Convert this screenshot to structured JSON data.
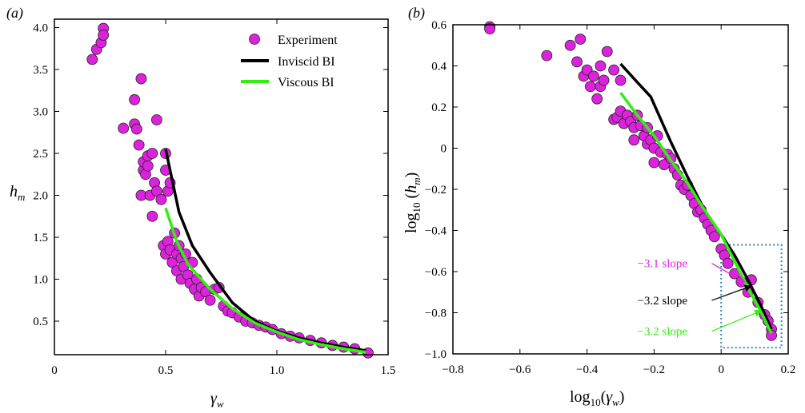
{
  "colors": {
    "experiment_fill": "#dd22dd",
    "experiment_edge": "#222222",
    "inviscid": "#000000",
    "viscous": "#33ee11",
    "box": "#2a8ab8",
    "annot_magenta": "#dd22dd",
    "annot_black": "#000000",
    "annot_green": "#33ee11"
  },
  "chart_data": [
    {
      "type": "scatter",
      "panel_label": "(a)",
      "xlabel": "γ_w",
      "ylabel": "h_m",
      "xlim": [
        0,
        1.5
      ],
      "ylim": [
        0.1,
        4.1
      ],
      "x_ticks": [
        0,
        0.5,
        1.0,
        1.5
      ],
      "x_tick_labels": [
        "0",
        "0.5",
        "1.0",
        "1.5"
      ],
      "y_ticks": [
        0.5,
        1.0,
        1.5,
        2.0,
        2.5,
        3.0,
        3.5,
        4.0
      ],
      "y_tick_labels": [
        "0.5",
        "1.0",
        "1.5",
        "2.0",
        "2.5",
        "3.0",
        "3.5",
        "4.0"
      ],
      "legend": {
        "position": "top-right",
        "entries": [
          "Experiment",
          "Inviscid BI",
          "Viscous BI"
        ]
      },
      "series": [
        {
          "name": "Experiment",
          "kind": "scatter",
          "points": [
            [
              0.17,
              3.62
            ],
            [
              0.19,
              3.74
            ],
            [
              0.21,
              3.82
            ],
            [
              0.22,
              3.99
            ],
            [
              0.22,
              3.91
            ],
            [
              0.31,
              2.8
            ],
            [
              0.36,
              2.85
            ],
            [
              0.36,
              3.14
            ],
            [
              0.37,
              2.79
            ],
            [
              0.38,
              2.6
            ],
            [
              0.39,
              3.39
            ],
            [
              0.39,
              2.0
            ],
            [
              0.4,
              2.3
            ],
            [
              0.4,
              2.4
            ],
            [
              0.41,
              2.25
            ],
            [
              0.42,
              2.35
            ],
            [
              0.42,
              2.47
            ],
            [
              0.43,
              2.0
            ],
            [
              0.44,
              1.75
            ],
            [
              0.44,
              2.5
            ],
            [
              0.45,
              2.15
            ],
            [
              0.46,
              2.9
            ],
            [
              0.46,
              2.05
            ],
            [
              0.48,
              1.95
            ],
            [
              0.5,
              2.5
            ],
            [
              0.5,
              2.3
            ],
            [
              0.51,
              2.05
            ],
            [
              0.52,
              2.15
            ],
            [
              0.49,
              1.4
            ],
            [
              0.5,
              1.3
            ],
            [
              0.51,
              1.45
            ],
            [
              0.52,
              1.35
            ],
            [
              0.53,
              1.2
            ],
            [
              0.54,
              1.55
            ],
            [
              0.55,
              1.3
            ],
            [
              0.55,
              1.1
            ],
            [
              0.56,
              1.4
            ],
            [
              0.57,
              1.25
            ],
            [
              0.57,
              1.0
            ],
            [
              0.58,
              1.15
            ],
            [
              0.59,
              1.3
            ],
            [
              0.6,
              1.05
            ],
            [
              0.61,
              0.95
            ],
            [
              0.62,
              1.2
            ],
            [
              0.63,
              0.88
            ],
            [
              0.64,
              1.0
            ],
            [
              0.65,
              0.8
            ],
            [
              0.66,
              0.9
            ],
            [
              0.68,
              0.85
            ],
            [
              0.7,
              0.75
            ],
            [
              0.72,
              0.88
            ],
            [
              0.74,
              0.9
            ],
            [
              0.76,
              0.68
            ],
            [
              0.78,
              0.62
            ],
            [
              0.8,
              0.6
            ],
            [
              0.83,
              0.55
            ],
            [
              0.86,
              0.5
            ],
            [
              0.89,
              0.48
            ],
            [
              0.92,
              0.45
            ],
            [
              0.95,
              0.43
            ],
            [
              0.98,
              0.4
            ],
            [
              1.02,
              0.35
            ],
            [
              1.06,
              0.32
            ],
            [
              1.1,
              0.3
            ],
            [
              1.15,
              0.27
            ],
            [
              1.2,
              0.24
            ],
            [
              1.25,
              0.21
            ],
            [
              1.3,
              0.19
            ],
            [
              1.35,
              0.17
            ],
            [
              1.41,
              0.12
            ]
          ]
        },
        {
          "name": "Inviscid BI",
          "kind": "line",
          "points": [
            [
              0.5,
              2.55
            ],
            [
              0.56,
              1.8
            ],
            [
              0.62,
              1.4
            ],
            [
              0.7,
              1.08
            ],
            [
              0.8,
              0.72
            ],
            [
              0.9,
              0.5
            ],
            [
              1.0,
              0.38
            ],
            [
              1.1,
              0.3
            ],
            [
              1.2,
              0.24
            ],
            [
              1.3,
              0.19
            ],
            [
              1.4,
              0.15
            ]
          ]
        },
        {
          "name": "Viscous BI",
          "kind": "line",
          "points": [
            [
              0.5,
              1.85
            ],
            [
              0.55,
              1.45
            ],
            [
              0.6,
              1.18
            ],
            [
              0.7,
              0.88
            ],
            [
              0.8,
              0.65
            ],
            [
              0.9,
              0.48
            ],
            [
              1.0,
              0.37
            ],
            [
              1.1,
              0.28
            ],
            [
              1.2,
              0.22
            ],
            [
              1.3,
              0.17
            ],
            [
              1.4,
              0.13
            ]
          ]
        }
      ]
    },
    {
      "type": "scatter",
      "panel_label": "(b)",
      "xlabel": "log10(γ_w)",
      "ylabel": "log10(h_m)",
      "xlim": [
        -0.8,
        0.2
      ],
      "ylim": [
        -1.0,
        0.6
      ],
      "x_ticks": [
        -0.8,
        -0.6,
        -0.4,
        -0.2,
        0,
        0.2
      ],
      "x_tick_labels": [
        "−0.8",
        "−0.6",
        "−0.4",
        "−0.2",
        "0",
        "0.2"
      ],
      "y_ticks": [
        -1.0,
        -0.8,
        -0.6,
        -0.4,
        -0.2,
        0,
        0.2,
        0.4,
        0.6
      ],
      "y_tick_labels": [
        "−1.0",
        "−0.8",
        "−0.6",
        "−0.4",
        "−0.2",
        "0",
        "0.2",
        "0.4",
        "0.6"
      ],
      "annotations": [
        {
          "text": "−3.1 slope",
          "color_key": "annot_magenta",
          "text_at": [
            -0.25,
            -0.56
          ],
          "arrow_to": [
            0.07,
            -0.65
          ]
        },
        {
          "text": "−3.2 slope",
          "color_key": "annot_black",
          "text_at": [
            -0.25,
            -0.74
          ],
          "arrow_to": [
            0.09,
            -0.67
          ]
        },
        {
          "text": "−3.2 slope",
          "color_key": "annot_green",
          "text_at": [
            -0.25,
            -0.89
          ],
          "arrow_to": [
            0.12,
            -0.79
          ]
        }
      ],
      "box": {
        "x": [
          0.0,
          0.18
        ],
        "y": [
          -0.97,
          -0.47
        ]
      },
      "series": [
        {
          "name": "Experiment",
          "kind": "scatter",
          "points": [
            [
              -0.69,
              0.59
            ],
            [
              -0.69,
              0.58
            ],
            [
              -0.52,
              0.45
            ],
            [
              -0.45,
              0.5
            ],
            [
              -0.42,
              0.53
            ],
            [
              -0.43,
              0.42
            ],
            [
              -0.41,
              0.35
            ],
            [
              -0.4,
              0.38
            ],
            [
              -0.39,
              0.3
            ],
            [
              -0.38,
              0.35
            ],
            [
              -0.37,
              0.24
            ],
            [
              -0.36,
              0.4
            ],
            [
              -0.36,
              0.3
            ],
            [
              -0.35,
              0.33
            ],
            [
              -0.34,
              0.47
            ],
            [
              -0.32,
              0.38
            ],
            [
              -0.32,
              0.14
            ],
            [
              -0.31,
              0.15
            ],
            [
              -0.3,
              0.33
            ],
            [
              -0.3,
              0.18
            ],
            [
              -0.29,
              0.12
            ],
            [
              -0.28,
              0.16
            ],
            [
              -0.27,
              0.13
            ],
            [
              -0.26,
              0.1
            ],
            [
              -0.26,
              0.04
            ],
            [
              -0.25,
              0.16
            ],
            [
              -0.24,
              0.11
            ],
            [
              -0.23,
              0.06
            ],
            [
              -0.22,
              0.02
            ],
            [
              -0.22,
              0.1
            ],
            [
              -0.21,
              0.04
            ],
            [
              -0.2,
              0.0
            ],
            [
              -0.2,
              -0.07
            ],
            [
              -0.19,
              0.06
            ],
            [
              -0.18,
              -0.02
            ],
            [
              -0.17,
              -0.08
            ],
            [
              -0.16,
              -0.03
            ],
            [
              -0.15,
              -0.05
            ],
            [
              -0.14,
              -0.1
            ],
            [
              -0.13,
              -0.13
            ],
            [
              -0.12,
              -0.18
            ],
            [
              -0.11,
              -0.2
            ],
            [
              -0.1,
              -0.18
            ],
            [
              -0.09,
              -0.23
            ],
            [
              -0.08,
              -0.27
            ],
            [
              -0.07,
              -0.31
            ],
            [
              -0.06,
              -0.3
            ],
            [
              -0.05,
              -0.34
            ],
            [
              -0.04,
              -0.37
            ],
            [
              -0.03,
              -0.4
            ],
            [
              -0.02,
              -0.43
            ],
            [
              0.0,
              -0.49
            ],
            [
              0.01,
              -0.52
            ],
            [
              0.02,
              -0.56
            ],
            [
              0.04,
              -0.61
            ],
            [
              0.06,
              -0.65
            ],
            [
              0.08,
              -0.7
            ],
            [
              0.09,
              -0.64
            ],
            [
              0.11,
              -0.75
            ],
            [
              0.13,
              -0.81
            ],
            [
              0.14,
              -0.84
            ],
            [
              0.15,
              -0.88
            ],
            [
              0.15,
              -0.91
            ]
          ]
        },
        {
          "name": "Inviscid BI",
          "kind": "line",
          "points": [
            [
              -0.3,
              0.41
            ],
            [
              -0.25,
              0.32
            ],
            [
              -0.21,
              0.25
            ],
            [
              -0.15,
              0.03
            ],
            [
              -0.1,
              -0.14
            ],
            [
              -0.05,
              -0.3
            ],
            [
              0.0,
              -0.42
            ],
            [
              0.04,
              -0.52
            ],
            [
              0.08,
              -0.64
            ],
            [
              0.12,
              -0.77
            ],
            [
              0.15,
              -0.88
            ]
          ]
        },
        {
          "name": "Viscous BI",
          "kind": "line",
          "points": [
            [
              -0.3,
              0.27
            ],
            [
              -0.25,
              0.16
            ],
            [
              -0.2,
              0.06
            ],
            [
              -0.15,
              -0.06
            ],
            [
              -0.1,
              -0.17
            ],
            [
              -0.05,
              -0.3
            ],
            [
              0.0,
              -0.42
            ],
            [
              0.04,
              -0.55
            ],
            [
              0.08,
              -0.68
            ],
            [
              0.12,
              -0.8
            ],
            [
              0.15,
              -0.9
            ]
          ]
        }
      ]
    }
  ]
}
